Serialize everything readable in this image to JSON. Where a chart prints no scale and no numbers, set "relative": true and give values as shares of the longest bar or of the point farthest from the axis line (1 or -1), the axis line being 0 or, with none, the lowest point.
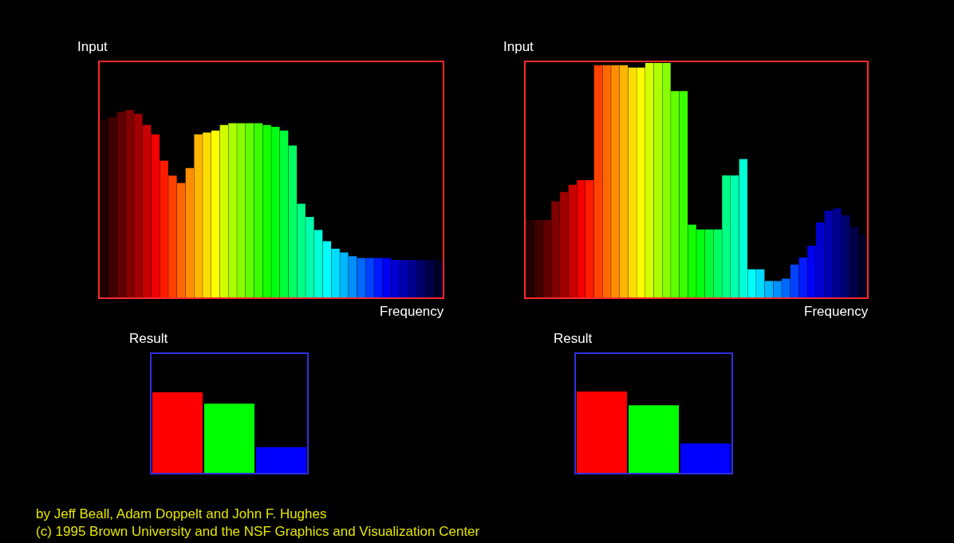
{
  "chart_data": [
    {
      "type": "bar",
      "title": "Input",
      "xlabel": "Frequency",
      "relative": true,
      "categories": [
        null,
        null,
        null,
        null,
        null,
        null,
        null,
        null,
        null,
        null,
        null,
        null,
        null,
        null,
        null,
        null,
        null,
        null,
        null,
        null,
        null,
        null,
        null,
        null,
        null,
        null,
        null,
        null,
        null,
        null,
        null,
        null,
        null,
        null,
        null,
        null,
        null,
        null,
        null,
        null
      ],
      "values": [
        0.95,
        0.96,
        0.99,
        1.0,
        0.98,
        0.92,
        0.87,
        0.73,
        0.65,
        0.61,
        0.69,
        0.87,
        0.88,
        0.89,
        0.92,
        0.93,
        0.93,
        0.93,
        0.93,
        0.92,
        0.91,
        0.89,
        0.81,
        0.5,
        0.43,
        0.36,
        0.3,
        0.26,
        0.24,
        0.22,
        0.21,
        0.21,
        0.21,
        0.21,
        0.2,
        0.2,
        0.2,
        0.2,
        0.2,
        0.2
      ],
      "colors": [
        "#200000",
        "#400000",
        "#600000",
        "#800000",
        "#a00000",
        "#c80000",
        "#f00000",
        "#ff1b00",
        "#ff4200",
        "#ff6800",
        "#ff8f00",
        "#ffb600",
        "#ffdc00",
        "#fbff00",
        "#d4ff00",
        "#aeff00",
        "#87ff00",
        "#61ff00",
        "#3aff00",
        "#13ff00",
        "#00ff13",
        "#00ff3a",
        "#00ff61",
        "#00ff87",
        "#00ffae",
        "#00ffd4",
        "#00fffb",
        "#00dcff",
        "#00b6ff",
        "#008fff",
        "#0068ff",
        "#0042ff",
        "#001bff",
        "#0000f5",
        "#0000d2",
        "#0000b0",
        "#00008d",
        "#00006b",
        "#000048",
        "#000026"
      ]
    },
    {
      "type": "bar",
      "title": "Input",
      "xlabel": "Frequency",
      "relative": true,
      "categories": [
        null,
        null,
        null,
        null,
        null,
        null,
        null,
        null,
        null,
        null,
        null,
        null,
        null,
        null,
        null,
        null,
        null,
        null,
        null,
        null,
        null,
        null,
        null,
        null,
        null,
        null,
        null,
        null,
        null,
        null,
        null,
        null,
        null,
        null,
        null,
        null,
        null,
        null,
        null,
        null
      ],
      "values": [
        0.33,
        0.33,
        0.33,
        0.41,
        0.45,
        0.48,
        0.5,
        0.5,
        0.99,
        0.99,
        0.99,
        0.99,
        0.98,
        0.98,
        1.0,
        1.0,
        1.0,
        0.88,
        0.88,
        0.31,
        0.29,
        0.29,
        0.29,
        0.52,
        0.52,
        0.59,
        0.12,
        0.12,
        0.07,
        0.07,
        0.08,
        0.14,
        0.17,
        0.22,
        0.32,
        0.37,
        0.38,
        0.35,
        0.3,
        0.27
      ],
      "colors": [
        "#200000",
        "#400000",
        "#600000",
        "#800000",
        "#a00000",
        "#c80000",
        "#f00000",
        "#ff1b00",
        "#ff4200",
        "#ff6800",
        "#ff8f00",
        "#ffb600",
        "#ffdc00",
        "#fbff00",
        "#d4ff00",
        "#aeff00",
        "#87ff00",
        "#61ff00",
        "#3aff00",
        "#13ff00",
        "#00ff13",
        "#00ff3a",
        "#00ff61",
        "#00ff87",
        "#00ffae",
        "#00ffd4",
        "#00fffb",
        "#00dcff",
        "#00b6ff",
        "#008fff",
        "#0068ff",
        "#0042ff",
        "#001bff",
        "#0000f5",
        "#0000d2",
        "#0000b0",
        "#00008d",
        "#00006b",
        "#000048",
        "#000026"
      ]
    },
    {
      "type": "bar",
      "title": "Result",
      "relative": true,
      "categories": [
        null,
        null,
        null
      ],
      "values": [
        1.0,
        0.86,
        0.32
      ],
      "colors": [
        "#ff0000",
        "#00ff00",
        "#0000ff"
      ]
    },
    {
      "type": "bar",
      "title": "Result",
      "relative": true,
      "categories": [
        null,
        null,
        null
      ],
      "values": [
        1.0,
        0.83,
        0.36
      ],
      "colors": [
        "#ff0000",
        "#00ff00",
        "#0000ff"
      ],
      "annotations": [
        "by Jeff Beall, Adam Doppelt and John F. Hughes",
        "(c) 1995 Brown University and the NSF Graphics and Visualization Center"
      ]
    }
  ]
}
